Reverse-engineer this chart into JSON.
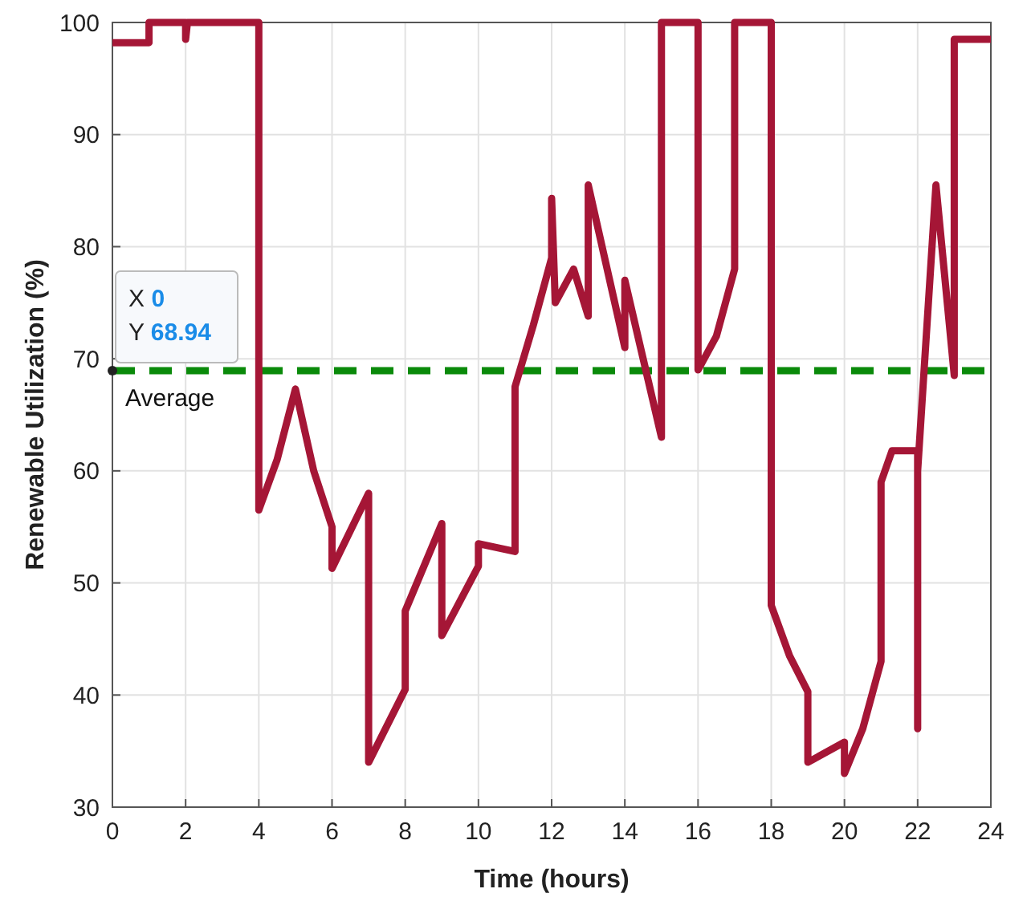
{
  "chart_data": {
    "type": "line",
    "xlabel": "Time (hours)",
    "ylabel": "Renewable Utilization (%)",
    "xlim": [
      0,
      24
    ],
    "ylim": [
      30,
      100
    ],
    "xticks": [
      0,
      2,
      4,
      6,
      8,
      10,
      12,
      14,
      16,
      18,
      20,
      22,
      24
    ],
    "yticks": [
      30,
      40,
      50,
      60,
      70,
      80,
      90,
      100
    ],
    "grid": true,
    "line_style": "solid",
    "marker": "none",
    "series": [
      {
        "color": "#a51636",
        "x": [
          0,
          1,
          1,
          2,
          2,
          2.05,
          4,
          4,
          4.5,
          5,
          5.5,
          6,
          6,
          7,
          7,
          8,
          8,
          9,
          9,
          10,
          10,
          11,
          11,
          11.5,
          12,
          12,
          12.1,
          12.6,
          13,
          13,
          14,
          14,
          14.5,
          15,
          15,
          16,
          16,
          16.5,
          17,
          17,
          18,
          18,
          18.5,
          19,
          19,
          20,
          20,
          20.5,
          21,
          21,
          21.3,
          22,
          22,
          22,
          22.5,
          23,
          23,
          24
        ],
        "values": [
          98.2,
          98.2,
          100,
          100,
          98.5,
          100,
          100,
          56.5,
          61,
          67.3,
          60,
          55,
          51.3,
          58,
          34,
          40.5,
          47.5,
          55.3,
          45.3,
          51.5,
          53.5,
          52.8,
          67.5,
          73,
          79,
          84.3,
          75,
          78,
          73.8,
          85.5,
          71,
          77,
          70,
          63,
          100,
          100,
          69,
          72,
          78,
          100,
          100,
          48,
          43.5,
          40.3,
          34,
          35.8,
          33,
          37,
          43,
          59,
          61.8,
          61.8,
          37,
          60,
          85.5,
          68.5,
          98.5,
          98.5
        ]
      }
    ],
    "ref_lines": [
      {
        "axis": "y",
        "value": 68.94,
        "label": "Average",
        "color": "#0a8a0a",
        "line_style": "dashed"
      }
    ],
    "annotations": [
      {
        "text": "X 0\nY 68.94",
        "x": 0,
        "y": 68.94
      }
    ]
  }
}
